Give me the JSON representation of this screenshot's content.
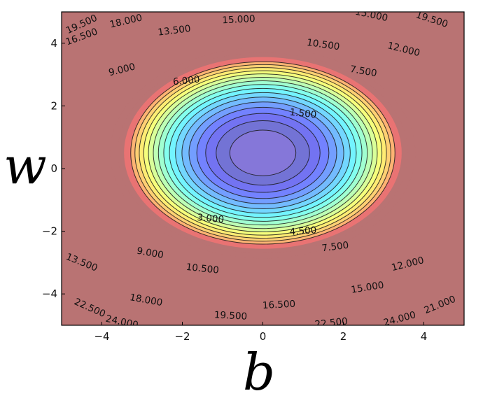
{
  "chart_data": {
    "type": "contour",
    "xlabel": "b",
    "ylabel": "w",
    "xlim": [
      -5,
      5
    ],
    "ylim": [
      -5,
      5
    ],
    "x_ticks": [
      -4,
      -2,
      0,
      2,
      4
    ],
    "y_ticks": [
      -4,
      -2,
      0,
      2,
      4
    ],
    "x_tick_labels": [
      "−4",
      "−2",
      "0",
      "2",
      "4"
    ],
    "y_tick_labels": [
      "−4",
      "−2",
      "0",
      "2",
      "4"
    ],
    "surface_center": [
      0,
      0.5
    ],
    "colormap": "jet",
    "levels": [
      0,
      1.5,
      3,
      4.5,
      6,
      7.5,
      9,
      10.5,
      12,
      13.5,
      15,
      16.5,
      18,
      19.5,
      21,
      22.5,
      24
    ],
    "contour_labels": [
      {
        "text": "1.500",
        "b": 1.0,
        "w": 1.75,
        "angle": 6
      },
      {
        "text": "3.000",
        "b": -1.3,
        "w": -1.6,
        "angle": 5
      },
      {
        "text": "4.500",
        "b": 1.0,
        "w": -2.0,
        "angle": -4
      },
      {
        "text": "6.000",
        "b": -1.9,
        "w": 2.8,
        "angle": -6
      },
      {
        "text": "7.500",
        "b": 2.5,
        "w": 3.1,
        "angle": 10
      },
      {
        "text": "7.500",
        "b": 1.8,
        "w": -2.5,
        "angle": -7
      },
      {
        "text": "9.000",
        "b": -3.5,
        "w": 3.15,
        "angle": -14
      },
      {
        "text": "9.000",
        "b": -2.8,
        "w": -2.7,
        "angle": 10
      },
      {
        "text": "10.500",
        "b": 1.5,
        "w": 3.95,
        "angle": 8
      },
      {
        "text": "10.500",
        "b": -1.5,
        "w": -3.2,
        "angle": 6
      },
      {
        "text": "12.000",
        "b": 3.5,
        "w": 3.8,
        "angle": 14
      },
      {
        "text": "12.000",
        "b": 3.6,
        "w": -3.05,
        "angle": -14
      },
      {
        "text": "13.500",
        "b": -2.2,
        "w": 4.4,
        "angle": -7
      },
      {
        "text": "13.500",
        "b": -4.5,
        "w": -3.0,
        "angle": 22
      },
      {
        "text": "15.000",
        "b": -0.6,
        "w": 4.75,
        "angle": -3
      },
      {
        "text": "15.000",
        "b": 2.6,
        "w": -3.8,
        "angle": -9
      },
      {
        "text": "16.500",
        "b": -4.5,
        "w": 4.2,
        "angle": -20
      },
      {
        "text": "16.500",
        "b": 0.4,
        "w": -4.35,
        "angle": -3
      },
      {
        "text": "18.000",
        "b": -3.4,
        "w": 4.7,
        "angle": -13
      },
      {
        "text": "18.000",
        "b": -2.9,
        "w": -4.2,
        "angle": 10
      },
      {
        "text": "19.500",
        "b": -4.5,
        "w": 4.6,
        "angle": -25
      },
      {
        "text": "19.500",
        "b": 4.2,
        "w": 4.75,
        "angle": 18
      },
      {
        "text": "19.500",
        "b": -0.8,
        "w": -4.7,
        "angle": 3
      },
      {
        "text": "21.000",
        "b": 4.4,
        "w": -4.35,
        "angle": -22
      },
      {
        "text": "22.500",
        "b": -4.3,
        "w": -4.45,
        "angle": 24
      },
      {
        "text": "22.500",
        "b": 1.7,
        "w": -4.93,
        "angle": -6
      },
      {
        "text": "24.000",
        "b": -3.5,
        "w": -4.9,
        "angle": 12
      },
      {
        "text": "24.000",
        "b": 3.4,
        "w": -4.8,
        "angle": -15
      },
      {
        "text": "15.000",
        "b": 2.7,
        "w": 4.9,
        "angle": 12
      }
    ]
  }
}
